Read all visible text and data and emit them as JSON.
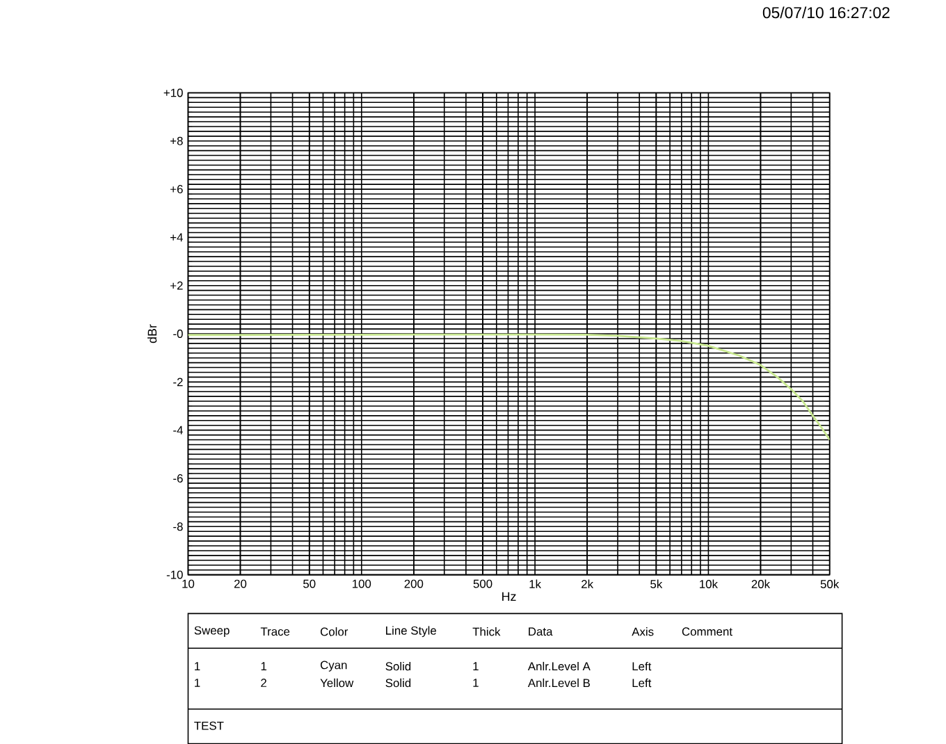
{
  "chart_data": {
    "type": "line",
    "xlabel": "Hz",
    "ylabel": "dBr",
    "log": "x",
    "grid": true,
    "marker": "none",
    "line_style": "solid",
    "xlim": [
      10,
      50000
    ],
    "xticks": [
      10,
      20,
      50,
      100,
      200,
      500,
      {
        "value": 1000,
        "label": "1k"
      },
      {
        "value": 2000,
        "label": "2k"
      },
      {
        "value": 5000,
        "label": "5k"
      },
      {
        "value": 10000,
        "label": "10k"
      },
      {
        "value": 20000,
        "label": "20k"
      },
      {
        "value": 50000,
        "label": "50k"
      }
    ],
    "ylim": [
      -10,
      10
    ],
    "yticks": [
      {
        "value": 10,
        "label": "+10"
      },
      {
        "value": 8,
        "label": "+8"
      },
      {
        "value": 6,
        "label": "+6"
      },
      {
        "value": 4,
        "label": "+4"
      },
      {
        "value": 2,
        "label": "+2"
      },
      {
        "value": 0,
        "label": "-0"
      },
      -2,
      -4,
      -6,
      -8,
      -10
    ],
    "x": [
      10,
      20,
      50,
      100,
      200,
      500,
      1000,
      2000,
      3000,
      5000,
      7000,
      10000,
      15000,
      20000,
      25000,
      30000,
      35000,
      40000,
      45000,
      50000
    ],
    "series": [
      {
        "color": "#c8e890",
        "values": [
          -0.05,
          -0.05,
          -0.04,
          -0.04,
          -0.03,
          -0.03,
          -0.03,
          -0.04,
          -0.08,
          -0.2,
          -0.3,
          -0.5,
          -0.9,
          -1.3,
          -1.8,
          -2.3,
          -2.8,
          -3.4,
          -3.9,
          -4.4
        ]
      }
    ],
    "annotations": [
      "05/07/10 16:27:02",
      "Sweep",
      "Trace",
      "Color",
      "Line Style",
      "Thick",
      "Data",
      "Axis",
      "Comment",
      "1",
      "1",
      "Cyan",
      "Solid",
      "1",
      "Anlr.Level A",
      "Left",
      "1",
      "2",
      "Yellow",
      "Solid",
      "1",
      "Anlr.Level B",
      "Left",
      "TEST"
    ]
  }
}
